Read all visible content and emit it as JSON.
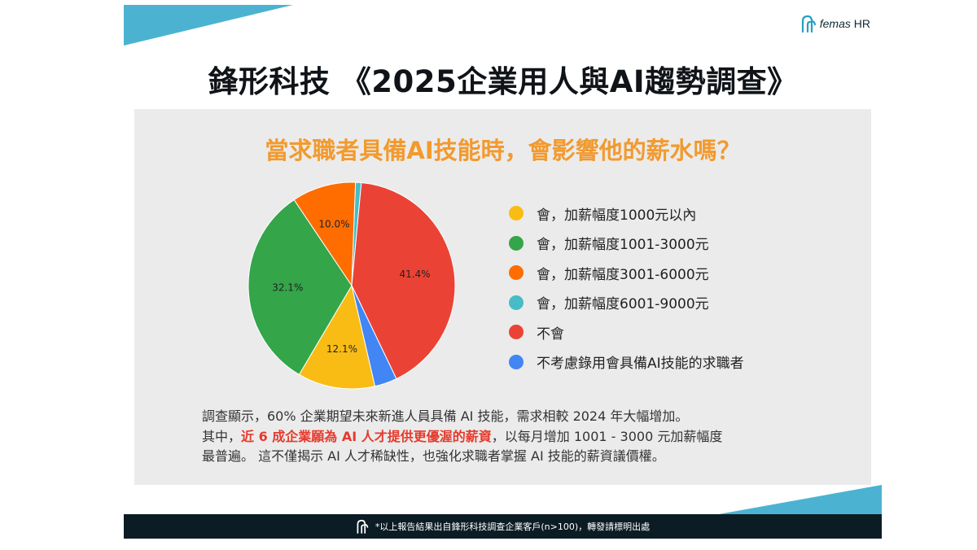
{
  "brand": {
    "name": "femas",
    "suffix": "HR"
  },
  "headline": "鋒形科技 《2025企業用人與AI趨勢調查》",
  "chart_data": {
    "type": "pie",
    "title": "當求職者具備AI技能時，會影響他的薪水嗎？",
    "slices": [
      {
        "label": "會，加薪幅度1000元以內",
        "value": 12.1,
        "value_label": "12.1%",
        "color": "#f9bc15"
      },
      {
        "label": "會，加薪幅度1001-3000元",
        "value": 32.1,
        "value_label": "32.1%",
        "color": "#34a549"
      },
      {
        "label": "會，加薪幅度3001-6000元",
        "value": 10.0,
        "value_label": "10.0%",
        "color": "#ff6d01"
      },
      {
        "label": "會，加薪幅度6001-9000元",
        "value": 0.9,
        "value_label": "",
        "color": "#46bdc6"
      },
      {
        "label": "不會",
        "value": 41.4,
        "value_label": "41.4%",
        "color": "#ea4335"
      },
      {
        "label": "不考慮錄用會具備AI技能的求職者",
        "value": 3.5,
        "value_label": "",
        "color": "#4285f4"
      }
    ],
    "legend_position": "right"
  },
  "summary": {
    "line1": "調查顯示，60% 企業期望未來新進人員具備 AI 技能，需求相較 2024 年大幅增加。",
    "line2_pre": "其中，",
    "line2_highlight": "近 6 成企業願為 AI 人才提供更優渥的薪資",
    "line2_post": "，以每月增加 1001 - 3000 元加薪幅度",
    "line3": "最普遍。 這不僅揭示 AI 人才稀缺性，也強化求職者掌握 AI 技能的薪資議價權。"
  },
  "footer": {
    "note": "*以上報告結果出自鋒形科技調查企業客戶(n>100)，轉發請標明出處"
  },
  "colors": {
    "accent_teal": "#4bb3d1",
    "question": "#f29a2e",
    "highlight": "#e53a2c",
    "footer_bg": "#0c1c24"
  }
}
